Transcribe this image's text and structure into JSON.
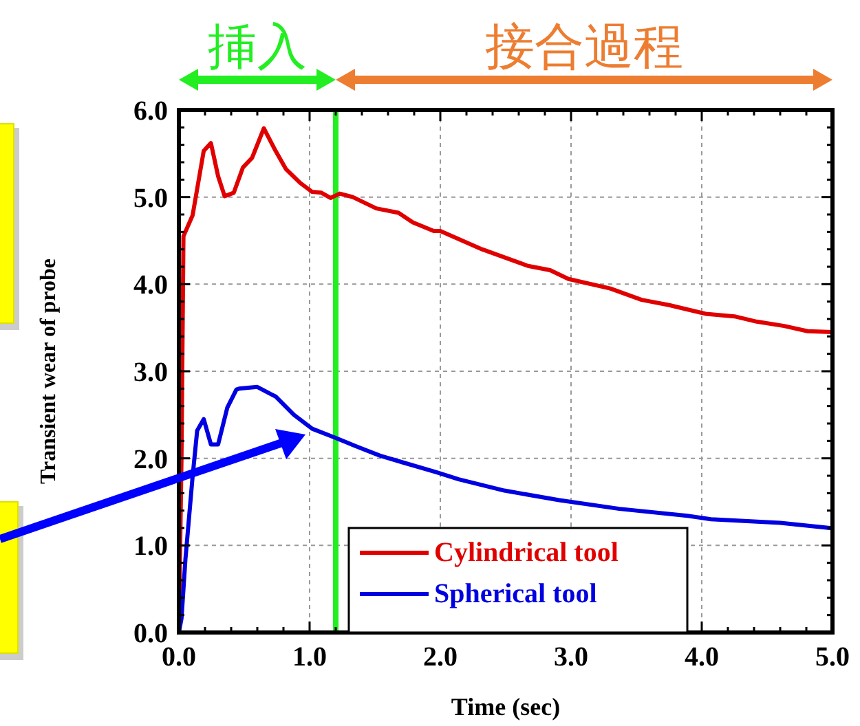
{
  "chart_data": {
    "type": "line",
    "xlabel": "Time (sec)",
    "ylabel": "Transient wear of probe",
    "xlim": [
      0,
      5
    ],
    "ylim": [
      0,
      6
    ],
    "xticks": [
      {
        "value": 0,
        "label": "0.0"
      },
      {
        "value": 1,
        "label": "1.0"
      },
      {
        "value": 2,
        "label": "2.0"
      },
      {
        "value": 3,
        "label": "3.0"
      },
      {
        "value": 4,
        "label": "4.0"
      },
      {
        "value": 5,
        "label": "5.0"
      }
    ],
    "yticks": [
      {
        "value": 0,
        "label": "0.0"
      },
      {
        "value": 1,
        "label": "1.0"
      },
      {
        "value": 2,
        "label": "2.0"
      },
      {
        "value": 3,
        "label": "3.0"
      },
      {
        "value": 4,
        "label": "4.0"
      },
      {
        "value": 5,
        "label": "5.0"
      },
      {
        "value": 6,
        "label": "6.0"
      }
    ],
    "grid": true,
    "legend": "bottom",
    "ref_lines": [
      {
        "axis": "x",
        "value": 1.2,
        "color": "#22ee22"
      }
    ],
    "annotations": [
      "挿入",
      "接合過程"
    ],
    "series": [
      {
        "name": "Cylindrical tool",
        "color": "#e00000",
        "x": [
          0,
          0.02,
          0.035,
          0.105,
          0.19,
          0.245,
          0.3,
          0.35,
          0.42,
          0.49,
          0.56,
          0.65,
          0.74,
          0.82,
          0.93,
          1.02,
          1.09,
          1.16,
          1.23,
          1.33,
          1.51,
          1.68,
          1.79,
          1.95,
          2.0,
          2.32,
          2.67,
          2.84,
          2.98,
          3.3,
          3.54,
          3.75,
          4.03,
          4.25,
          4.42,
          4.63,
          4.81,
          5.0
        ],
        "values": [
          0,
          2.0,
          4.55,
          4.79,
          5.53,
          5.62,
          5.24,
          5.01,
          5.05,
          5.34,
          5.45,
          5.79,
          5.53,
          5.32,
          5.16,
          5.06,
          5.05,
          4.99,
          5.04,
          5.0,
          4.87,
          4.82,
          4.71,
          4.61,
          4.61,
          4.4,
          4.21,
          4.16,
          4.06,
          3.95,
          3.82,
          3.76,
          3.66,
          3.63,
          3.57,
          3.52,
          3.46,
          3.45
        ]
      },
      {
        "name": "Spherical tool",
        "color": "#0000e0",
        "x": [
          0,
          0.02,
          0.05,
          0.105,
          0.14,
          0.19,
          0.245,
          0.3,
          0.37,
          0.44,
          0.46,
          0.6,
          0.7,
          0.74,
          0.88,
          1.02,
          1.19,
          1.37,
          1.54,
          1.72,
          1.97,
          2.14,
          2.49,
          2.91,
          3.37,
          3.89,
          4.07,
          4.6,
          4.98
        ],
        "values": [
          0,
          0.16,
          0.84,
          1.79,
          2.32,
          2.45,
          2.16,
          2.16,
          2.58,
          2.79,
          2.8,
          2.82,
          2.74,
          2.71,
          2.5,
          2.34,
          2.24,
          2.13,
          2.03,
          1.95,
          1.84,
          1.76,
          1.63,
          1.52,
          1.42,
          1.34,
          1.3,
          1.26,
          1.2
        ]
      }
    ]
  }
}
